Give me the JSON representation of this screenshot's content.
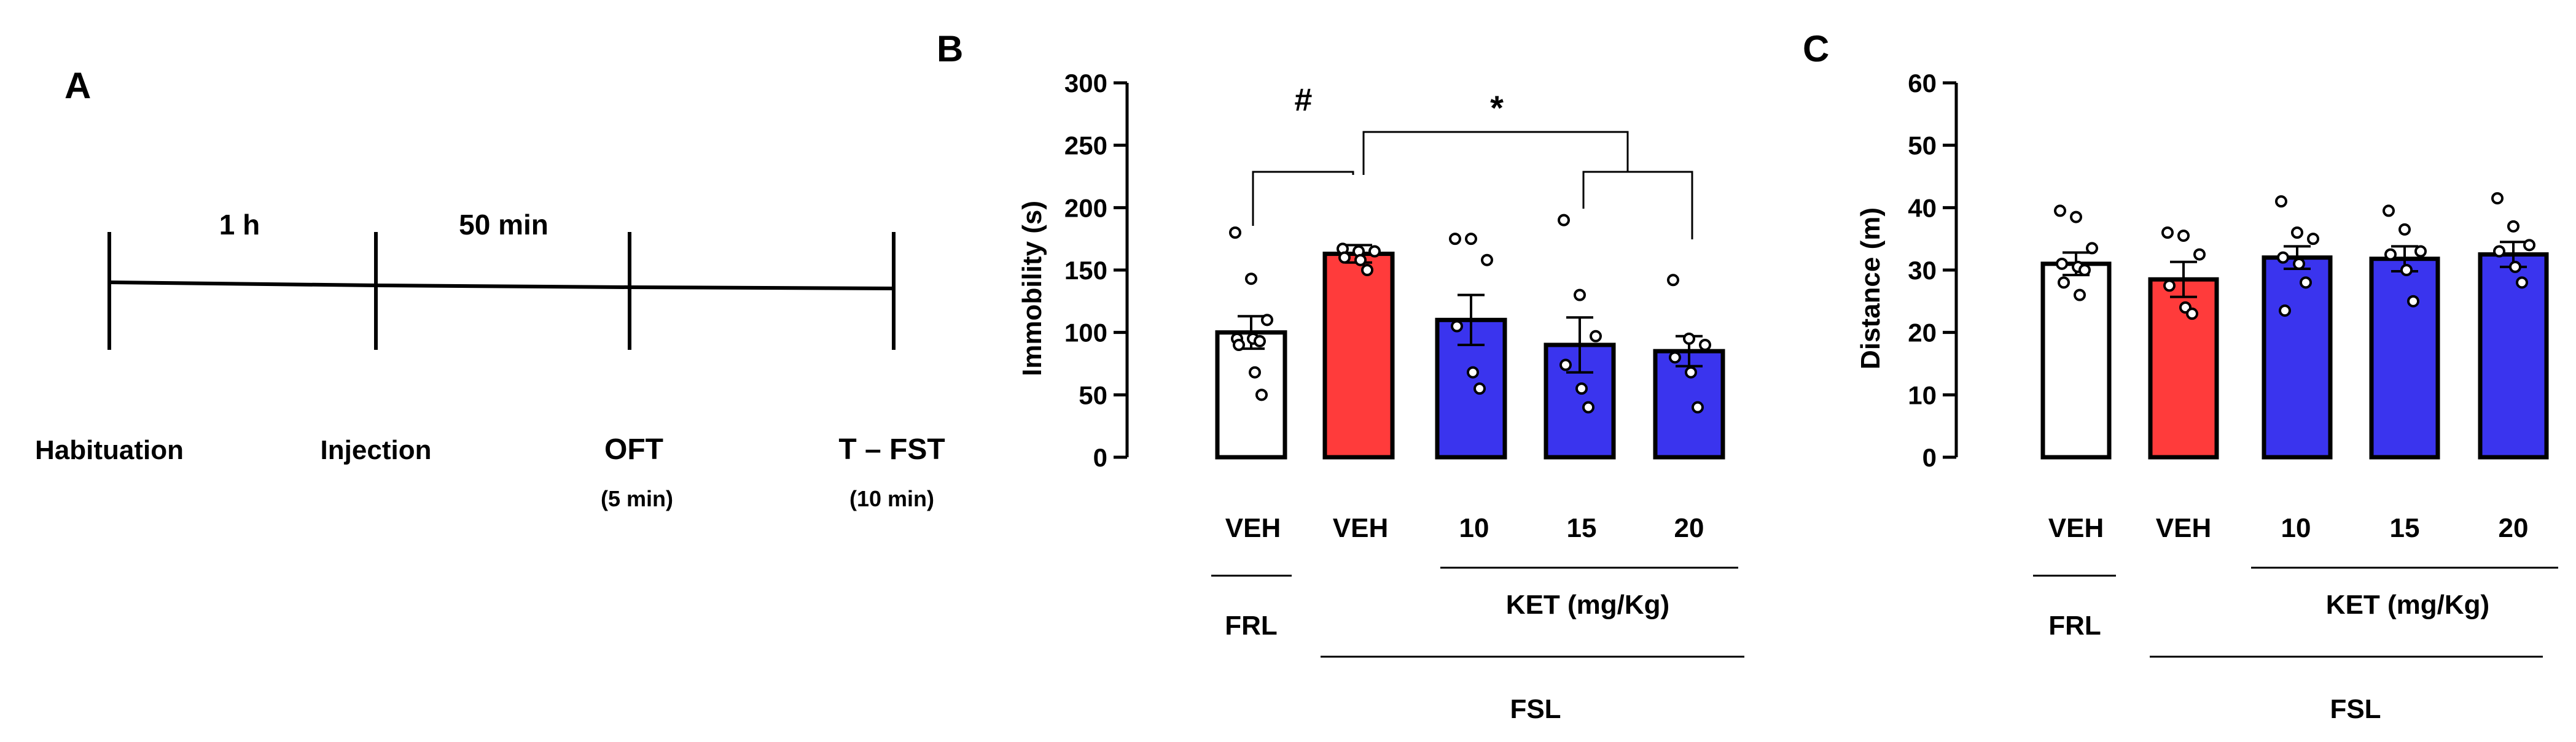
{
  "panels": {
    "a": {
      "letter": "A",
      "intervals": [
        "1 h",
        "50 min"
      ],
      "stages": [
        {
          "label": "Habituation",
          "sub": ""
        },
        {
          "label": "Injection",
          "sub": ""
        },
        {
          "label": "OFT",
          "sub": "(5 min)"
        },
        {
          "label": "T – FST",
          "sub": "(10 min)"
        }
      ]
    },
    "b": {
      "letter": "B"
    },
    "c": {
      "letter": "C"
    }
  },
  "groups": {
    "doses": [
      "VEH",
      "VEH",
      "10",
      "15",
      "20"
    ],
    "frl_label": "FRL",
    "ket_label": "KET (mg/Kg)",
    "fsl_label": "FSL"
  },
  "colors": {
    "frl_veh": "#ffffff",
    "fsl_veh": "#ff3b3b",
    "ket": "#3a34ee",
    "stroke": "#000000"
  },
  "chart_data": [
    {
      "id": "immobility",
      "type": "bar",
      "ylabel": "Immobility (s)",
      "ylim": [
        0,
        300
      ],
      "yticks": [
        0,
        50,
        100,
        150,
        200,
        250,
        300
      ],
      "categories": [
        "FRL VEH",
        "FSL VEH",
        "FSL KET 10",
        "FSL KET 15",
        "FSL KET 20"
      ],
      "values": [
        100,
        163,
        110,
        90,
        85
      ],
      "sem": [
        13,
        7,
        20,
        22,
        12
      ],
      "points": [
        [
          180,
          143,
          110,
          95,
          95,
          93,
          90,
          68,
          50
        ],
        [
          167,
          165,
          165,
          160,
          158,
          150
        ],
        [
          175,
          175,
          158,
          105,
          68,
          55
        ],
        [
          190,
          130,
          97,
          74,
          55,
          40
        ],
        [
          142,
          95,
          90,
          80,
          68,
          40
        ]
      ],
      "significance": [
        {
          "symbol": "#",
          "from": "FRL VEH",
          "to": "FSL VEH"
        },
        {
          "symbol": "*",
          "from": "FSL VEH",
          "to": "FSL KET 15 / 20"
        }
      ]
    },
    {
      "id": "distance",
      "type": "bar",
      "ylabel": "Distance (m)",
      "ylim": [
        0,
        60
      ],
      "yticks": [
        0,
        10,
        20,
        30,
        40,
        50,
        60
      ],
      "categories": [
        "FRL VEH",
        "FSL VEH",
        "FSL KET 10",
        "FSL KET 15",
        "FSL KET 20"
      ],
      "values": [
        31,
        28.5,
        32,
        31.8,
        32.5
      ],
      "sem": [
        1.8,
        2.8,
        1.8,
        2,
        2
      ],
      "points": [
        [
          39.5,
          38.5,
          33.5,
          31,
          30.5,
          30,
          28,
          26
        ],
        [
          36,
          35.5,
          32.5,
          27.5,
          24,
          23
        ],
        [
          41,
          36,
          35,
          32,
          31,
          28,
          23.5
        ],
        [
          39.5,
          36.5,
          33,
          32.5,
          30,
          25
        ],
        [
          41.5,
          37,
          34,
          33,
          30.5,
          28
        ]
      ]
    }
  ]
}
